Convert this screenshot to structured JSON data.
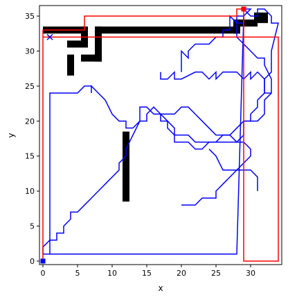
{
  "chart_data": {
    "type": "line",
    "xlabel": "x",
    "ylabel": "y",
    "xlim": [
      -0.5,
      34.5
    ],
    "ylim": [
      -0.5,
      36.5
    ],
    "x_ticks": [
      "0",
      "5",
      "10",
      "15",
      "20",
      "25",
      "30"
    ],
    "y_ticks": [
      "0",
      "5",
      "10",
      "15",
      "20",
      "25",
      "30",
      "35"
    ],
    "grid": false,
    "obstacles": [
      {
        "x": [
          0,
          6
        ],
        "y": [
          32.5,
          33.5
        ]
      },
      {
        "x": [
          5.5,
          6.5
        ],
        "y": [
          31,
          33.5
        ]
      },
      {
        "x": [
          3.5,
          6.5
        ],
        "y": [
          30.5,
          31.5
        ]
      },
      {
        "x": [
          3.5,
          4.5
        ],
        "y": [
          26.5,
          29.5
        ]
      },
      {
        "x": [
          5.5,
          8.5
        ],
        "y": [
          28.5,
          29.5
        ]
      },
      {
        "x": [
          7.5,
          8.5
        ],
        "y": [
          28.5,
          33.5
        ]
      },
      {
        "x": [
          7.5,
          28.5
        ],
        "y": [
          32.5,
          33.5
        ]
      },
      {
        "x": [
          27.5,
          28.5
        ],
        "y": [
          32.5,
          34.5
        ]
      },
      {
        "x": [
          27.5,
          31
        ],
        "y": [
          33.5,
          34.5
        ]
      },
      {
        "x": [
          30.5,
          32.5
        ],
        "y": [
          34,
          35.5
        ]
      },
      {
        "x": [
          11.5,
          12.5
        ],
        "y": [
          8.5,
          18.5
        ]
      }
    ],
    "series": [
      {
        "color": "#0000ff",
        "marker": "x",
        "x": [
          0,
          0,
          1,
          1,
          2,
          2,
          3,
          3,
          4,
          4,
          5,
          5,
          6,
          7,
          8,
          9,
          9,
          10,
          11,
          11,
          12,
          12,
          13,
          14,
          14,
          15,
          16,
          17,
          17,
          18,
          18,
          19,
          19,
          20,
          21,
          22,
          23,
          24,
          25,
          26,
          27,
          28,
          29,
          30,
          30,
          31,
          31,
          32,
          32,
          32,
          33,
          33,
          34,
          33,
          33,
          32,
          31,
          31,
          30,
          30,
          29,
          30,
          29,
          29,
          28,
          28,
          0
        ],
        "y": [
          1,
          2,
          3,
          3,
          3,
          4,
          4,
          5,
          6,
          7,
          7,
          7,
          8,
          9,
          10,
          11,
          11,
          12,
          13,
          14,
          15,
          16,
          18,
          20,
          22,
          22,
          21,
          21,
          20,
          20,
          19,
          18,
          17,
          17,
          17,
          16,
          16,
          17,
          17,
          18,
          18,
          19,
          20,
          20,
          21,
          22,
          23,
          24,
          26,
          26,
          27,
          30,
          34,
          34,
          35,
          36,
          36,
          35,
          35,
          35,
          36,
          36,
          35,
          35,
          1,
          1,
          1
        ]
      },
      {
        "color": "#0000ff",
        "marker": "none",
        "x": [
          1,
          1,
          5,
          6,
          7,
          7,
          7,
          8,
          9,
          10,
          11,
          12,
          12,
          13,
          14,
          15,
          15,
          16,
          17,
          17,
          18,
          19,
          19,
          20,
          21,
          22,
          23,
          25,
          26,
          28,
          29,
          29,
          30,
          31,
          32,
          32,
          33,
          33,
          32,
          32,
          31,
          30,
          29,
          29,
          28,
          28,
          29,
          29,
          28,
          28,
          27,
          27,
          26,
          26,
          25,
          24,
          22,
          21,
          21,
          20,
          20
        ],
        "y": [
          1,
          24,
          24,
          25,
          25,
          24,
          25,
          24,
          23,
          21,
          20,
          20,
          19,
          19,
          20,
          20,
          21,
          22,
          21,
          21,
          20,
          19,
          18,
          18,
          18,
          17,
          17,
          17,
          17,
          17,
          18,
          20,
          20,
          20,
          21,
          23,
          24,
          26,
          28,
          29,
          29,
          30,
          31,
          31,
          32,
          34,
          34,
          35,
          35,
          34,
          35,
          33,
          33,
          32,
          32,
          31,
          31,
          30,
          29,
          30,
          27
        ]
      },
      {
        "color": "#0000ff",
        "marker": "none",
        "x": [
          17,
          17,
          18,
          19,
          19,
          20,
          22,
          23,
          24,
          25,
          25,
          26,
          27,
          28,
          29,
          30,
          30,
          31,
          32,
          32,
          33
        ],
        "y": [
          27,
          26,
          26,
          27,
          26,
          26,
          27,
          27,
          26,
          27,
          26,
          27,
          27,
          27,
          26,
          27,
          26,
          27,
          26,
          24,
          24
        ]
      },
      {
        "color": "#0000ff",
        "marker": "none",
        "x": [
          24,
          25,
          25,
          26,
          27,
          28,
          29,
          30,
          31,
          31
        ],
        "y": [
          16,
          15,
          15,
          13,
          13,
          13,
          13,
          13,
          12,
          10
        ]
      },
      {
        "color": "#0000ff",
        "marker": "none",
        "x": [
          17,
          18,
          19,
          20,
          21,
          22,
          22,
          23,
          24,
          25,
          26,
          27,
          28,
          29,
          30,
          30,
          29,
          28,
          27,
          26,
          25,
          25,
          24,
          23,
          22,
          21,
          20
        ],
        "y": [
          21,
          21,
          21,
          22,
          22,
          21,
          21,
          20,
          19,
          18,
          18,
          18,
          17,
          17,
          16,
          15,
          14,
          13,
          12,
          11,
          10,
          9,
          9,
          9,
          8,
          8,
          8
        ]
      },
      {
        "color": "#ff0000",
        "marker": "square",
        "x": [
          0,
          0,
          34,
          34,
          29,
          29,
          28,
          28,
          6,
          6,
          0,
          0,
          4
        ],
        "y": [
          0,
          32,
          32,
          0,
          0,
          36,
          36,
          35,
          35,
          33,
          33,
          32,
          32
        ]
      }
    ],
    "markers": [
      {
        "x": 1,
        "y": 32,
        "color": "#0000ff",
        "shape": "x"
      },
      {
        "x": 0,
        "y": 0,
        "color": "#0000ff",
        "shape": "square"
      },
      {
        "x": 29,
        "y": 36,
        "color": "#ff0000",
        "shape": "square"
      }
    ]
  }
}
